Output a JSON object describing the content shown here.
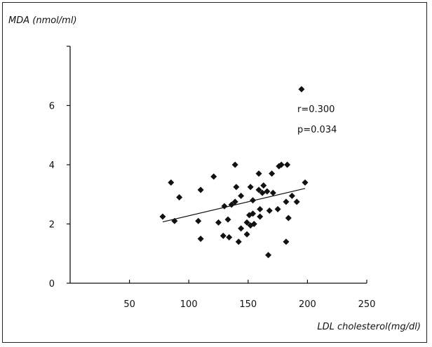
{
  "chart_data": {
    "type": "scatter",
    "xlabel": "LDL cholesterol(mg/dl)",
    "ylabel": "MDA (nmol/ml)",
    "xlim": [
      0,
      250
    ],
    "ylim": [
      0,
      8
    ],
    "xticks": [
      50,
      100,
      150,
      200,
      250
    ],
    "yticks": [
      0,
      2,
      4,
      6
    ],
    "annotations": [
      "r=0.300",
      "p=0.034"
    ],
    "grid": false,
    "points": [
      {
        "x": 78,
        "y": 2.25
      },
      {
        "x": 85,
        "y": 3.4
      },
      {
        "x": 88,
        "y": 2.1
      },
      {
        "x": 92,
        "y": 2.9
      },
      {
        "x": 108,
        "y": 2.1
      },
      {
        "x": 110,
        "y": 1.5
      },
      {
        "x": 110,
        "y": 3.15
      },
      {
        "x": 121,
        "y": 3.6
      },
      {
        "x": 125,
        "y": 2.05
      },
      {
        "x": 129,
        "y": 1.6
      },
      {
        "x": 130,
        "y": 2.6
      },
      {
        "x": 133,
        "y": 2.15
      },
      {
        "x": 134,
        "y": 1.55
      },
      {
        "x": 136,
        "y": 2.65
      },
      {
        "x": 139,
        "y": 2.75
      },
      {
        "x": 139,
        "y": 4.0
      },
      {
        "x": 140,
        "y": 3.25
      },
      {
        "x": 142,
        "y": 1.4
      },
      {
        "x": 144,
        "y": 2.95
      },
      {
        "x": 144,
        "y": 1.85
      },
      {
        "x": 149,
        "y": 2.05
      },
      {
        "x": 149,
        "y": 1.65
      },
      {
        "x": 151,
        "y": 2.3
      },
      {
        "x": 152,
        "y": 1.95
      },
      {
        "x": 152,
        "y": 3.25
      },
      {
        "x": 154,
        "y": 2.8
      },
      {
        "x": 154,
        "y": 2.35
      },
      {
        "x": 155,
        "y": 2.0
      },
      {
        "x": 159,
        "y": 3.15
      },
      {
        "x": 159,
        "y": 3.7
      },
      {
        "x": 160,
        "y": 2.5
      },
      {
        "x": 160,
        "y": 2.25
      },
      {
        "x": 162,
        "y": 3.05
      },
      {
        "x": 163,
        "y": 3.3
      },
      {
        "x": 166,
        "y": 3.1
      },
      {
        "x": 167,
        "y": 0.95
      },
      {
        "x": 168,
        "y": 2.45
      },
      {
        "x": 170,
        "y": 3.7
      },
      {
        "x": 171,
        "y": 3.05
      },
      {
        "x": 175,
        "y": 2.5
      },
      {
        "x": 176,
        "y": 3.95
      },
      {
        "x": 178,
        "y": 4.0
      },
      {
        "x": 182,
        "y": 2.75
      },
      {
        "x": 182,
        "y": 1.4
      },
      {
        "x": 183,
        "y": 4.0
      },
      {
        "x": 184,
        "y": 2.2
      },
      {
        "x": 187,
        "y": 2.95
      },
      {
        "x": 191,
        "y": 2.75
      },
      {
        "x": 195,
        "y": 6.55
      },
      {
        "x": 198,
        "y": 3.4
      }
    ],
    "regression": {
      "x": [
        78,
        198
      ],
      "y": [
        2.07,
        3.2
      ]
    }
  }
}
